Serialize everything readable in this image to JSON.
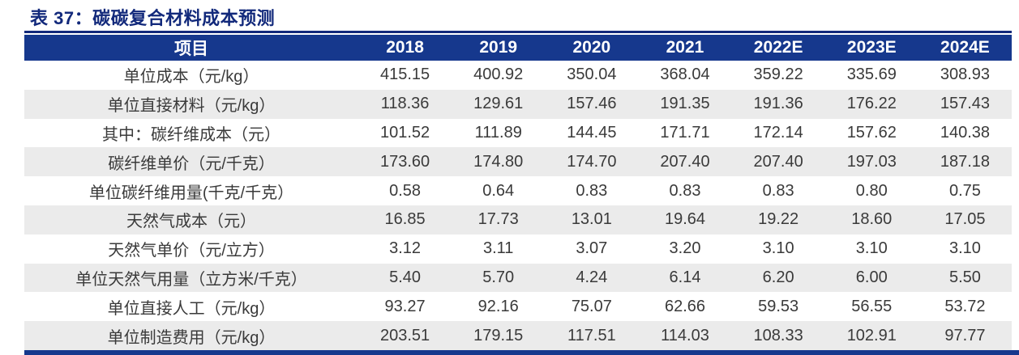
{
  "title": "表 37：碳碳复合材料成本预测",
  "colors": {
    "navy_accent": "#16388d",
    "title_navy": "#12297b",
    "stripe_gray": "#ebebeb",
    "header_text": "#ffffff",
    "body_text": "#3a3a3a"
  },
  "table": {
    "columns": [
      "项目",
      "2018",
      "2019",
      "2020",
      "2021",
      "2022E",
      "2023E",
      "2024E"
    ],
    "rows": [
      {
        "label": "单位成本（元/kg）",
        "values": [
          "415.15",
          "400.92",
          "350.04",
          "368.04",
          "359.22",
          "335.69",
          "308.93"
        ]
      },
      {
        "label": "单位直接材料（元/kg）",
        "values": [
          "118.36",
          "129.61",
          "157.46",
          "191.35",
          "191.36",
          "176.22",
          "157.43"
        ]
      },
      {
        "label": "其中：碳纤维成本（元）",
        "values": [
          "101.52",
          "111.89",
          "144.45",
          "171.71",
          "172.14",
          "157.62",
          "140.38"
        ]
      },
      {
        "label": "碳纤维单价（元/千克）",
        "values": [
          "173.60",
          "174.80",
          "174.70",
          "207.40",
          "207.40",
          "197.03",
          "187.18"
        ]
      },
      {
        "label": "单位碳纤维用量(千克/千克）",
        "values": [
          "0.58",
          "0.64",
          "0.83",
          "0.83",
          "0.83",
          "0.80",
          "0.75"
        ]
      },
      {
        "label": "天然气成本（元）",
        "values": [
          "16.85",
          "17.73",
          "13.01",
          "19.64",
          "19.22",
          "18.60",
          "17.05"
        ]
      },
      {
        "label": "天然气单价（元/立方）",
        "values": [
          "3.12",
          "3.11",
          "3.07",
          "3.20",
          "3.10",
          "3.10",
          "3.10"
        ]
      },
      {
        "label": "单位天然气用量（立方米/千克）",
        "values": [
          "5.40",
          "5.70",
          "4.24",
          "6.14",
          "6.20",
          "6.00",
          "5.50"
        ]
      },
      {
        "label": "单位直接人工（元/kg）",
        "values": [
          "93.27",
          "92.16",
          "75.07",
          "62.66",
          "59.53",
          "56.55",
          "53.72"
        ]
      },
      {
        "label": "单位制造费用（元/kg）",
        "values": [
          "203.51",
          "179.15",
          "117.51",
          "114.03",
          "108.33",
          "102.91",
          "97.77"
        ]
      }
    ]
  },
  "chart_data": {
    "type": "table",
    "title": "表 37：碳碳复合材料成本预测",
    "categories": [
      "2018",
      "2019",
      "2020",
      "2021",
      "2022E",
      "2023E",
      "2024E"
    ],
    "series": [
      {
        "name": "单位成本（元/kg）",
        "values": [
          415.15,
          400.92,
          350.04,
          368.04,
          359.22,
          335.69,
          308.93
        ]
      },
      {
        "name": "单位直接材料（元/kg）",
        "values": [
          118.36,
          129.61,
          157.46,
          191.35,
          191.36,
          176.22,
          157.43
        ]
      },
      {
        "name": "其中：碳纤维成本（元）",
        "values": [
          101.52,
          111.89,
          144.45,
          171.71,
          172.14,
          157.62,
          140.38
        ]
      },
      {
        "name": "碳纤维单价（元/千克）",
        "values": [
          173.6,
          174.8,
          174.7,
          207.4,
          207.4,
          197.03,
          187.18
        ]
      },
      {
        "name": "单位碳纤维用量(千克/千克）",
        "values": [
          0.58,
          0.64,
          0.83,
          0.83,
          0.83,
          0.8,
          0.75
        ]
      },
      {
        "name": "天然气成本（元）",
        "values": [
          16.85,
          17.73,
          13.01,
          19.64,
          19.22,
          18.6,
          17.05
        ]
      },
      {
        "name": "天然气单价（元/立方）",
        "values": [
          3.12,
          3.11,
          3.07,
          3.2,
          3.1,
          3.1,
          3.1
        ]
      },
      {
        "name": "单位天然气用量（立方米/千克）",
        "values": [
          5.4,
          5.7,
          4.24,
          6.14,
          6.2,
          6.0,
          5.5
        ]
      },
      {
        "name": "单位直接人工（元/kg）",
        "values": [
          93.27,
          92.16,
          75.07,
          62.66,
          59.53,
          56.55,
          53.72
        ]
      },
      {
        "name": "单位制造费用（元/kg）",
        "values": [
          203.51,
          179.15,
          117.51,
          114.03,
          108.33,
          102.91,
          97.77
        ]
      }
    ]
  }
}
